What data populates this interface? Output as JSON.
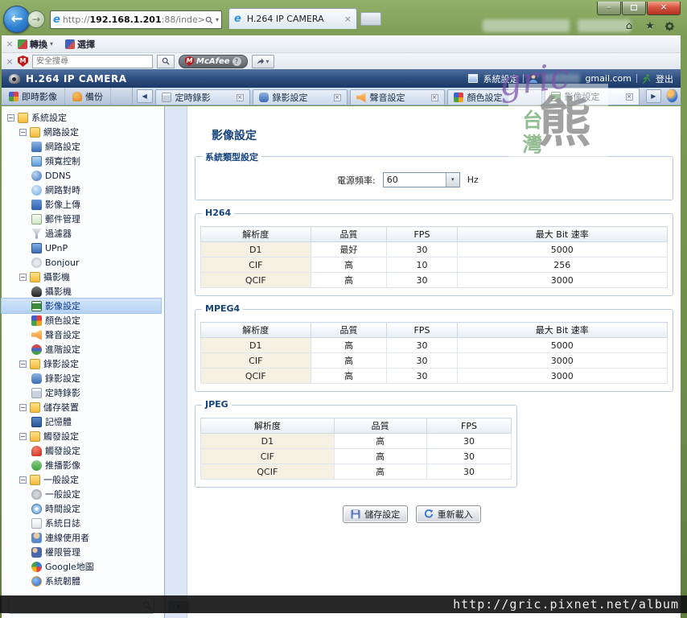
{
  "icons": {
    "close": "×",
    "minimize": "–",
    "star": "★",
    "home": "⌂",
    "caret": "▾",
    "back": "←",
    "forward": "→",
    "refresh": "↻",
    "tree_collapse": "−",
    "scroll_left": "◀",
    "scroll_right": "▶",
    "collapse": "‹"
  },
  "browser": {
    "url_scheme": "http://",
    "url_host": "192.168.1.201",
    "url_path": ":88/inde>",
    "tab_title": "H.264 IP CAMERA",
    "convert_label": "轉換",
    "select_label": "選擇",
    "mcafee_placeholder": "安全搜尋",
    "mcafee_brand": "McAfee",
    "mcafee_m": "M",
    "mcafee_help": "?"
  },
  "header": {
    "title": "H.264 IP CAMERA",
    "system_settings": "系統設定",
    "account": "gmail.com",
    "logout": "登出"
  },
  "view_tabs": {
    "live": "即時影像",
    "backup": "備份"
  },
  "doc_tabs": [
    {
      "label": "定時錄影",
      "icon": "schedule",
      "closable": true,
      "active": false
    },
    {
      "label": "錄影設定",
      "icon": "record",
      "closable": true,
      "active": false
    },
    {
      "label": "聲音設定",
      "icon": "audio",
      "closable": true,
      "active": false
    },
    {
      "label": "顏色設定",
      "icon": "color",
      "closable": false,
      "active": false
    },
    {
      "label": "影像設定",
      "icon": "video",
      "closable": true,
      "active": true
    }
  ],
  "sidebar": {
    "tree": [
      {
        "label": "系統設定",
        "icon": "folder",
        "children": [
          {
            "label": "網路設定",
            "icon": "folder",
            "children": [
              {
                "label": "網路設定",
                "icon": "network"
              },
              {
                "label": "頻寬控制",
                "icon": "bandwidth"
              },
              {
                "label": "DDNS",
                "icon": "ddns"
              },
              {
                "label": "網路對時",
                "icon": "ntp"
              },
              {
                "label": "影像上傳",
                "icon": "upload"
              },
              {
                "label": "郵件管理",
                "icon": "mail"
              },
              {
                "label": "過濾器",
                "icon": "filter"
              },
              {
                "label": "UPnP",
                "icon": "upnp"
              },
              {
                "label": "Bonjour",
                "icon": "bonjour"
              }
            ]
          },
          {
            "label": "攝影機",
            "icon": "folder",
            "children": [
              {
                "label": "攝影機",
                "icon": "camera"
              },
              {
                "label": "影像設定",
                "icon": "video",
                "selected": true
              },
              {
                "label": "顏色設定",
                "icon": "color"
              },
              {
                "label": "聲音設定",
                "icon": "audio"
              },
              {
                "label": "進階設定",
                "icon": "advanced"
              }
            ]
          },
          {
            "label": "錄影設定",
            "icon": "folder",
            "children": [
              {
                "label": "錄影設定",
                "icon": "record"
              },
              {
                "label": "定時錄影",
                "icon": "schedule"
              }
            ]
          },
          {
            "label": "儲存裝置",
            "icon": "folder",
            "children": [
              {
                "label": "記憶體",
                "icon": "memory"
              }
            ]
          },
          {
            "label": "觸發設定",
            "icon": "folder",
            "children": [
              {
                "label": "觸發設定",
                "icon": "trigger"
              },
              {
                "label": "推播影像",
                "icon": "push"
              }
            ]
          },
          {
            "label": "一般設定",
            "icon": "folder",
            "children": [
              {
                "label": "一般設定",
                "icon": "general"
              },
              {
                "label": "時間設定",
                "icon": "time"
              },
              {
                "label": "系統日誌",
                "icon": "log"
              },
              {
                "label": "連線使用者",
                "icon": "users"
              },
              {
                "label": "權限管理",
                "icon": "permission"
              },
              {
                "label": "Google地圖",
                "icon": "googlemap"
              },
              {
                "label": "系統韌體",
                "icon": "firmware"
              }
            ]
          }
        ]
      }
    ]
  },
  "main": {
    "title": "影像設定",
    "system_type": {
      "legend": "系統類型設定",
      "label": "電源頻率:",
      "value": "60",
      "unit": "Hz"
    },
    "sections": [
      {
        "legend": "H264",
        "headers": [
          "解析度",
          "品質",
          "FPS",
          "最大 Bit 速率"
        ],
        "rows": [
          [
            "D1",
            "最好",
            "30",
            "5000"
          ],
          [
            "CIF",
            "高",
            "10",
            "256"
          ],
          [
            "QCIF",
            "高",
            "30",
            "3000"
          ]
        ]
      },
      {
        "legend": "MPEG4",
        "headers": [
          "解析度",
          "品質",
          "FPS",
          "最大 Bit 速率"
        ],
        "rows": [
          [
            "D1",
            "高",
            "30",
            "5000"
          ],
          [
            "CIF",
            "高",
            "30",
            "3000"
          ],
          [
            "QCIF",
            "高",
            "30",
            "3000"
          ]
        ]
      },
      {
        "legend": "JPEG",
        "headers": [
          "解析度",
          "品質",
          "FPS"
        ],
        "rows": [
          [
            "D1",
            "高",
            "30"
          ],
          [
            "CIF",
            "高",
            "30"
          ],
          [
            "QCIF",
            "高",
            "30"
          ]
        ]
      }
    ],
    "buttons": {
      "save": "儲存設定",
      "reload": "重新載入"
    }
  },
  "watermark": {
    "script": "gric",
    "vertical": "台灣",
    "big": "熊",
    "url": "http://gric.pixnet.net/album"
  },
  "colors": {
    "banner": "#2c4d7f",
    "accent": "#16437e",
    "selection": "#b5d2f3",
    "table_first_col": "#f5f1e2"
  }
}
